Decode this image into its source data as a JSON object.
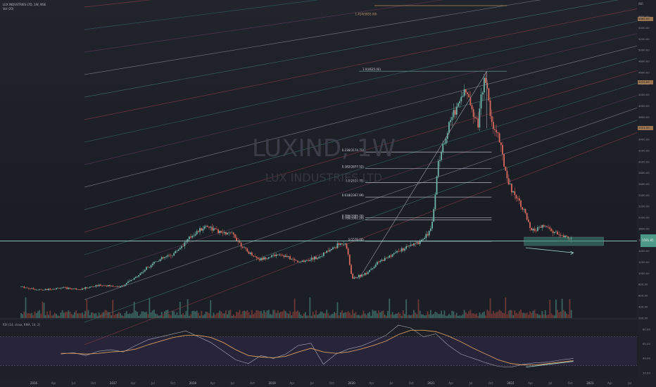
{
  "header": {
    "symbol_line": "LUX INDUSTRIES LTD, 1W, NSE",
    "study_line": "Vol (20)"
  },
  "watermark": {
    "symbol": "LUXIND, 1W",
    "name": "LUX INDUSTRIES LTD"
  },
  "chart_data": [
    {
      "type": "candlestick",
      "yaxis": {
        "label": "INR",
        "ticks": [
          200,
          400,
          600,
          800,
          1000,
          1200,
          1400,
          1600,
          1800,
          2000,
          2200,
          2400,
          2600,
          2800,
          3000,
          3200,
          3400,
          3600,
          3800,
          4000,
          4200,
          4400,
          4600,
          4800,
          5000,
          5200,
          5400,
          5600
        ],
        "range": [
          200,
          5800
        ]
      },
      "xaxis": {
        "ticks": [
          "2016",
          "Apr",
          "Jul",
          "Oct",
          "2017",
          "Apr",
          "Jul",
          "Oct",
          "2018",
          "Apr",
          "Jul",
          "Oct",
          "2019",
          "Apr",
          "Jul",
          "Oct",
          "2020",
          "Apr",
          "Jul",
          "Oct",
          "2021",
          "Apr",
          "Jul",
          "Oct",
          "2022",
          "Apr",
          "Jul",
          "Oct",
          "2023",
          "Apr",
          "Jul"
        ]
      },
      "price_path": [
        {
          "t": "2016-01",
          "price": 760
        },
        {
          "t": "2016-04",
          "price": 700
        },
        {
          "t": "2016-07",
          "price": 740
        },
        {
          "t": "2016-10",
          "price": 720
        },
        {
          "t": "2017-01",
          "price": 790
        },
        {
          "t": "2017-04",
          "price": 760
        },
        {
          "t": "2017-06",
          "price": 900
        },
        {
          "t": "2017-09",
          "price": 1200
        },
        {
          "t": "2017-12",
          "price": 1350
        },
        {
          "t": "2018-03",
          "price": 1700
        },
        {
          "t": "2018-05",
          "price": 1860
        },
        {
          "t": "2018-07",
          "price": 1730
        },
        {
          "t": "2018-09",
          "price": 1700
        },
        {
          "t": "2018-11",
          "price": 1400
        },
        {
          "t": "2019-01",
          "price": 1250
        },
        {
          "t": "2019-04",
          "price": 1350
        },
        {
          "t": "2019-07",
          "price": 1200
        },
        {
          "t": "2019-10",
          "price": 1300
        },
        {
          "t": "2020-01",
          "price": 1520
        },
        {
          "t": "2020-02",
          "price": 1560
        },
        {
          "t": "2020-03",
          "price": 900
        },
        {
          "t": "2020-05",
          "price": 1000
        },
        {
          "t": "2020-07",
          "price": 1200
        },
        {
          "t": "2020-10",
          "price": 1400
        },
        {
          "t": "2021-01",
          "price": 1550
        },
        {
          "t": "2021-03",
          "price": 1800
        },
        {
          "t": "2021-04",
          "price": 3000
        },
        {
          "t": "2021-06",
          "price": 3800
        },
        {
          "t": "2021-08",
          "price": 4300
        },
        {
          "t": "2021-10",
          "price": 3700
        },
        {
          "t": "2021-11",
          "price": 4620
        },
        {
          "t": "2021-12",
          "price": 3700
        },
        {
          "t": "2022-01",
          "price": 3500
        },
        {
          "t": "2022-02",
          "price": 2900
        },
        {
          "t": "2022-03",
          "price": 2500
        },
        {
          "t": "2022-04",
          "price": 2350
        },
        {
          "t": "2022-05",
          "price": 2100
        },
        {
          "t": "2022-06",
          "price": 1750
        },
        {
          "t": "2022-08",
          "price": 1850
        },
        {
          "t": "2022-10",
          "price": 1700
        },
        {
          "t": "2022-12",
          "price": 1620
        }
      ],
      "price_labels": [
        {
          "text": "5862.00",
          "color": "#b98a5a"
        },
        {
          "text": "4225.65",
          "color": "#b98a5a"
        },
        {
          "text": "3451.00",
          "color": "#b98a5a"
        }
      ],
      "current_price": "1591.85",
      "fibonacci": [
        {
          "label": "0.236(3174.71)",
          "price": 3175
        },
        {
          "label": "0.382(2877.52)",
          "price": 2878
        },
        {
          "label": "0.5(2627.75)",
          "price": 2628
        },
        {
          "label": "0.618(2367.99)",
          "price": 2368
        },
        {
          "label": "0.786(1995.20)",
          "price": 1995
        },
        {
          "label": "0.786(1961.20)",
          "price": 1961
        },
        {
          "label": "1(1576.00)",
          "price": 1576
        }
      ],
      "annotations": [
        "1.0(4625.00)",
        "1.414(5955.00)"
      ],
      "support_level": 1580
    },
    {
      "type": "line",
      "name": "RSI (14, close, RMA, 14, 2)",
      "ylim": [
        20,
        90
      ],
      "ticks": [
        20,
        40,
        60,
        80
      ],
      "bands": [
        30,
        70
      ],
      "rsi": [
        46,
        48,
        44,
        50,
        52,
        49,
        58,
        66,
        70,
        74,
        78,
        70,
        62,
        50,
        38,
        33,
        44,
        40,
        46,
        58,
        61,
        32,
        46,
        53,
        57,
        64,
        72,
        86,
        82,
        70,
        74,
        58,
        46,
        40,
        34,
        29,
        28,
        32,
        34,
        35,
        38,
        40
      ],
      "rsi_ma": [
        47,
        47,
        46,
        47,
        49,
        50,
        53,
        59,
        64,
        69,
        72,
        72,
        69,
        62,
        52,
        44,
        42,
        41,
        43,
        49,
        54,
        49,
        47,
        49,
        53,
        58,
        64,
        73,
        79,
        79,
        77,
        71,
        63,
        54,
        46,
        38,
        33,
        31,
        31,
        33,
        35,
        37
      ]
    }
  ]
}
